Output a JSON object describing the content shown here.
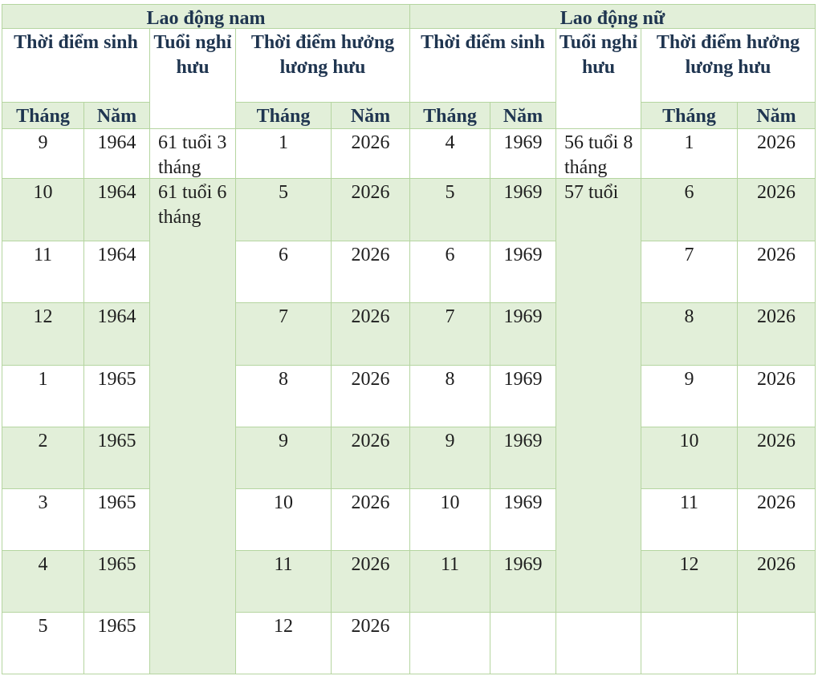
{
  "table": {
    "groups": [
      {
        "title": "Lao động nam",
        "birth_header": "Thời điểm sinh",
        "age_header": "Tuổi nghỉ hưu",
        "pension_header": "Thời điểm hưởng lương hưu",
        "subheaders": [
          "Tháng",
          "Năm",
          "Tháng",
          "Năm"
        ],
        "ages": [
          "61 tuổi 3 tháng",
          "61 tuổi 6 tháng"
        ],
        "rows": [
          [
            9,
            1964,
            1,
            2026
          ],
          [
            10,
            1964,
            5,
            2026
          ],
          [
            11,
            1964,
            6,
            2026
          ],
          [
            12,
            1964,
            7,
            2026
          ],
          [
            1,
            1965,
            8,
            2026
          ],
          [
            2,
            1965,
            9,
            2026
          ],
          [
            3,
            1965,
            10,
            2026
          ],
          [
            4,
            1965,
            11,
            2026
          ],
          [
            5,
            1965,
            12,
            2026
          ]
        ]
      },
      {
        "title": "Lao động nữ",
        "birth_header": "Thời điểm sinh",
        "age_header": "Tuổi nghỉ hưu",
        "pension_header": "Thời điểm hưởng lương hưu",
        "subheaders": [
          "Tháng",
          "Năm",
          "Tháng",
          "Năm"
        ],
        "ages": [
          "56 tuổi 8 tháng",
          "57 tuổi"
        ],
        "rows": [
          [
            4,
            1969,
            1,
            2026
          ],
          [
            5,
            1969,
            6,
            2026
          ],
          [
            6,
            1969,
            7,
            2026
          ],
          [
            7,
            1969,
            8,
            2026
          ],
          [
            8,
            1969,
            9,
            2026
          ],
          [
            9,
            1969,
            10,
            2026
          ],
          [
            10,
            1969,
            11,
            2026
          ],
          [
            11,
            1969,
            12,
            2026
          ]
        ]
      }
    ]
  }
}
